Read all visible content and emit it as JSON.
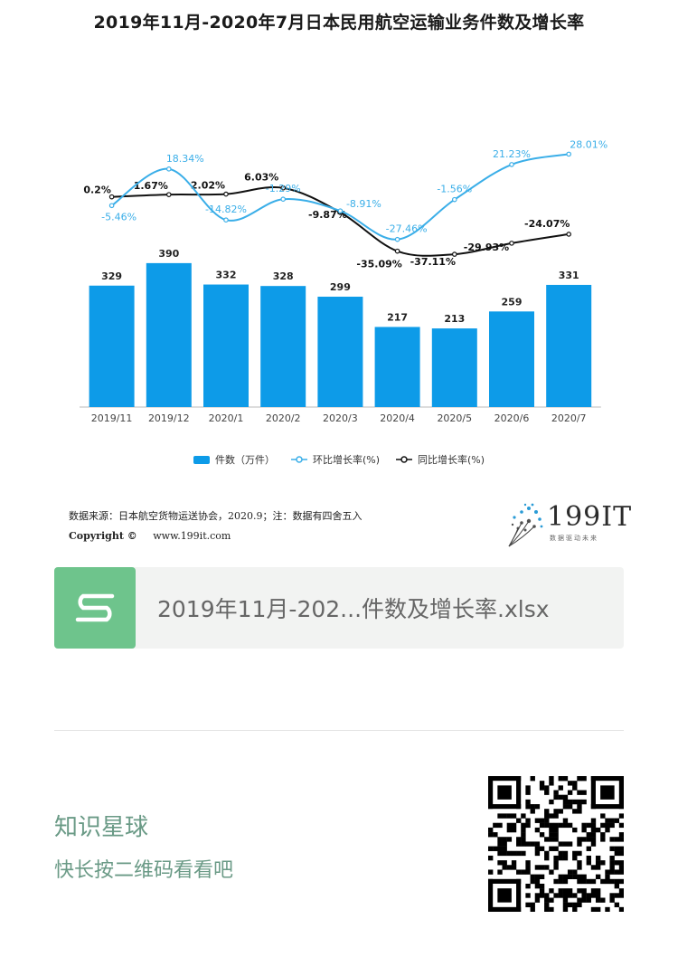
{
  "chart_data": {
    "type": "bar",
    "title": "2019年11月-2020年7月日本民用航空运输业务件数及增长率",
    "categories": [
      "2019/11",
      "2019/12",
      "2020/1",
      "2020/2",
      "2020/3",
      "2020/4",
      "2020/5",
      "2020/6",
      "2020/7"
    ],
    "series": [
      {
        "name": "件数（万件）",
        "type": "bar",
        "values": [
          329,
          390,
          332,
          328,
          299,
          217,
          213,
          259,
          331
        ],
        "color": "#0d9be8"
      },
      {
        "name": "环比增长率(%)",
        "type": "line",
        "values": [
          -5.46,
          18.34,
          -14.82,
          -1.29,
          -8.91,
          -27.46,
          -1.56,
          21.23,
          28.01
        ],
        "labels": [
          "-5.46%",
          "18.34%",
          "-14.82%",
          "-1.29%",
          "-8.91%",
          "-27.46%",
          "-1.56%",
          "21.23%",
          "28.01%"
        ],
        "color": "#3aaee8"
      },
      {
        "name": "同比增长率(%)",
        "type": "line",
        "values": [
          0.2,
          1.67,
          2.02,
          6.03,
          -9.87,
          -35.09,
          -37.11,
          -29.93,
          -24.07
        ],
        "labels": [
          "0.2%",
          "1.67%",
          "2.02%",
          "6.03%",
          "-9.87%",
          "-35.09%",
          "-37.11%",
          "-29.93%",
          "-24.07%"
        ],
        "color": "#111111"
      }
    ],
    "legend_position": "bottom",
    "grid": false
  },
  "source": {
    "line1": "数据来源：日本航空货物运送协会，2020.9；注：数据有四舍五入",
    "copyright_label": "Copyright ©",
    "website": "www.199it.com"
  },
  "brand": {
    "name": "199IT",
    "tagline": "数据驱动未来"
  },
  "file": {
    "name": "2019年11月-202...件数及增长率.xlsx"
  },
  "planet": {
    "title": "知识星球",
    "subtitle": "快长按二维码看看吧"
  },
  "colors": {
    "bar": "#0d9be8",
    "mom_line": "#3aaee8",
    "yoy_line": "#111111",
    "file_icon": "#6ec48c",
    "planet_text": "#6a9a86"
  }
}
